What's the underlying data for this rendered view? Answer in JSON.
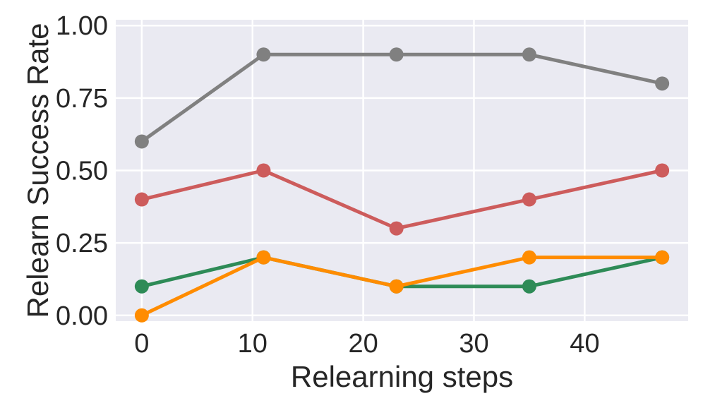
{
  "chart_data": {
    "type": "line",
    "xlabel": "Relearning steps",
    "ylabel": "Relearn Success Rate",
    "x": [
      0,
      11,
      23,
      35,
      47
    ],
    "xlim": [
      -2.35,
      49.35
    ],
    "ylim": [
      -0.02,
      1.02
    ],
    "xticks": [
      0,
      10,
      20,
      30,
      40
    ],
    "xtick_labels": [
      "0",
      "10",
      "20",
      "30",
      "40"
    ],
    "yticks": [
      0.0,
      0.25,
      0.5,
      0.75,
      1.0
    ],
    "ytick_labels": [
      "0.00",
      "0.25",
      "0.50",
      "0.75",
      "1.00"
    ],
    "grid": true,
    "background": "#eaeaf2",
    "series": [
      {
        "color": "#808080",
        "values": [
          0.6,
          0.9,
          0.9,
          0.9,
          0.8
        ]
      },
      {
        "color": "#cd5c5c",
        "values": [
          0.4,
          0.5,
          0.3,
          0.4,
          0.5
        ]
      },
      {
        "color": "#2e8b57",
        "values": [
          0.1,
          0.2,
          0.1,
          0.1,
          0.2
        ]
      },
      {
        "color": "#ff8c00",
        "values": [
          0.0,
          0.2,
          0.1,
          0.2,
          0.2
        ]
      }
    ]
  }
}
